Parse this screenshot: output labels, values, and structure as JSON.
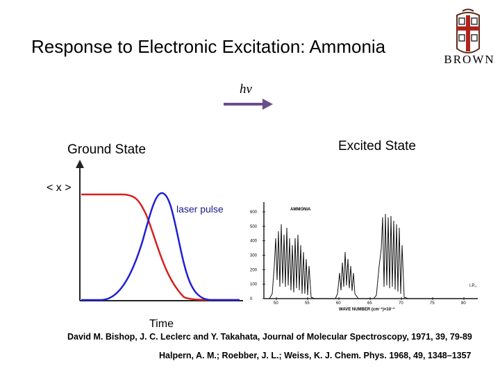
{
  "slide": {
    "title": "Response to Electronic Excitation: Ammonia",
    "logo_text": "BROWN",
    "photon_label": "hν",
    "ground_state_label": "Ground State",
    "excited_state_label": "Excited State",
    "laser_label": "laser pulse"
  },
  "plot": {
    "y_label": "< x >",
    "x_label": "Time",
    "curves": [
      {
        "color": "#d62020"
      },
      {
        "color": "#1f1fd6"
      }
    ]
  },
  "spectrum": {
    "title": "AMMONIA",
    "x_label": "WAVE NUMBER (cm⁻¹)×10⁻³",
    "x_ticks": [
      "50",
      "55",
      "60",
      "65",
      "70",
      "75",
      "80"
    ],
    "y_ticks": [
      "0",
      "100",
      "200",
      "300",
      "400",
      "500",
      "600"
    ],
    "annotation": "I.P.₁"
  },
  "references": {
    "ref1": "David M. Bishop, J. C. Leclerc and Y. Takahata, Journal of Molecular Spectroscopy, 1971, 39, 79-89",
    "ref2": "Halpern, A. M.; Roebber, J. L.; Weiss, K. J. Chem. Phys. 1968, 49, 1348–1357"
  }
}
